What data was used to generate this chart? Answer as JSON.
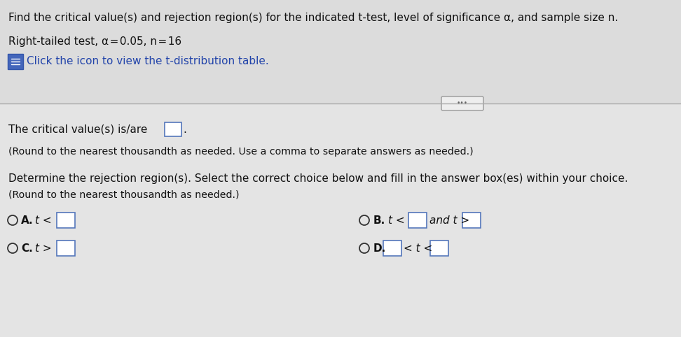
{
  "title_line1": "Find the critical value(s) and rejection region(s) for the indicated t-test, level of significance α, and sample size n.",
  "line2": "Right-tailed test, α = 0.05, n = 16",
  "line3_text": "Click the icon to view the t-distribution table.",
  "critical_label": "The critical value(s) is/are",
  "critical_note": "(Round to the nearest thousandth as needed. Use a comma to separate answers as needed.)",
  "determine_label": "Determine the rejection region(s). Select the correct choice below and fill in the answer box(es) within your choice.",
  "determine_note": "(Round to the nearest thousandth as needed.)",
  "optA_label": "A.",
  "optA_text": "t <",
  "optB_label": "B.",
  "optB_text1": "t <",
  "optB_and": "and t >",
  "optC_label": "C.",
  "optC_text": "t >",
  "optD_label": "D.",
  "optD_middle": "< t <",
  "main_bg": "#e8e8e8",
  "upper_bg": "#d8d8d8",
  "lower_bg": "#e0e0e0",
  "text_color": "#111111",
  "blue_text": "#2244aa",
  "box_edge_color": "#5577bb",
  "radio_color": "#333333",
  "divider_color": "#999999",
  "icon_bg": "#4466bb",
  "icon_border": "#3355aa"
}
